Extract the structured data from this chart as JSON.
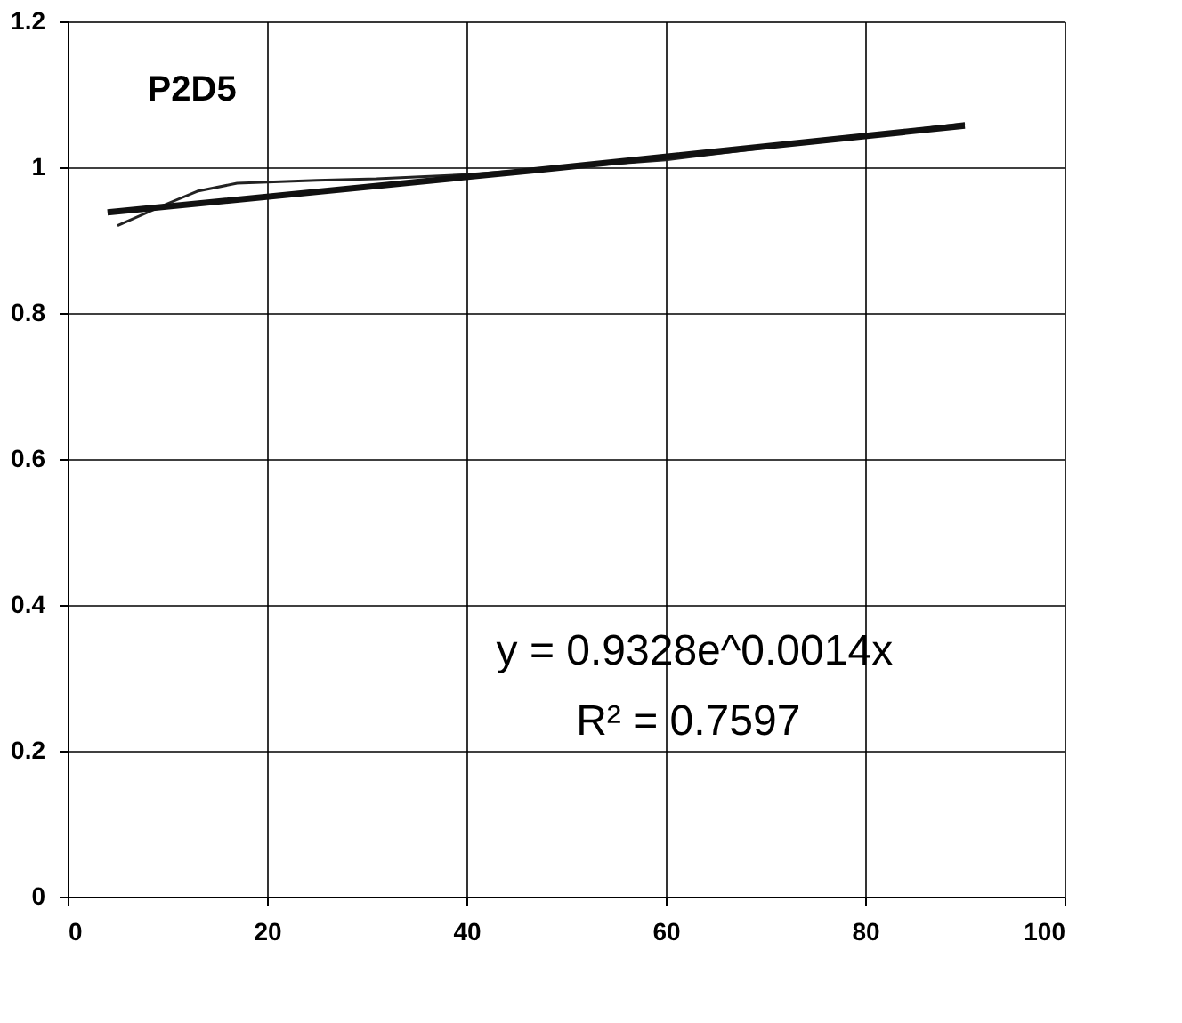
{
  "chart_data": {
    "type": "line",
    "annotations": [
      "P2D5",
      "y = 0.9328e^0.0014x",
      "R² = 0.7597"
    ],
    "series": [
      {
        "color": "#222222",
        "x": [
          5,
          10,
          13,
          17,
          25,
          31,
          40,
          60,
          90
        ],
        "values": [
          0.92,
          0.95,
          0.967,
          0.978,
          0.982,
          0.984,
          0.99,
          1.01,
          1.06
        ]
      },
      {
        "color": "#111111",
        "x": [
          4,
          47,
          90
        ],
        "values": [
          0.938,
          0.996,
          1.057
        ]
      }
    ],
    "xlim": [
      0,
      100
    ],
    "xticks": [
      0,
      20,
      40,
      60,
      80,
      100
    ],
    "ylim": [
      0,
      1.2
    ],
    "yticks": [
      0,
      0.2,
      0.4,
      0.6,
      0.8,
      1,
      1.2
    ],
    "grid": true,
    "legend": false,
    "marker": "none",
    "line_style": "solid"
  }
}
